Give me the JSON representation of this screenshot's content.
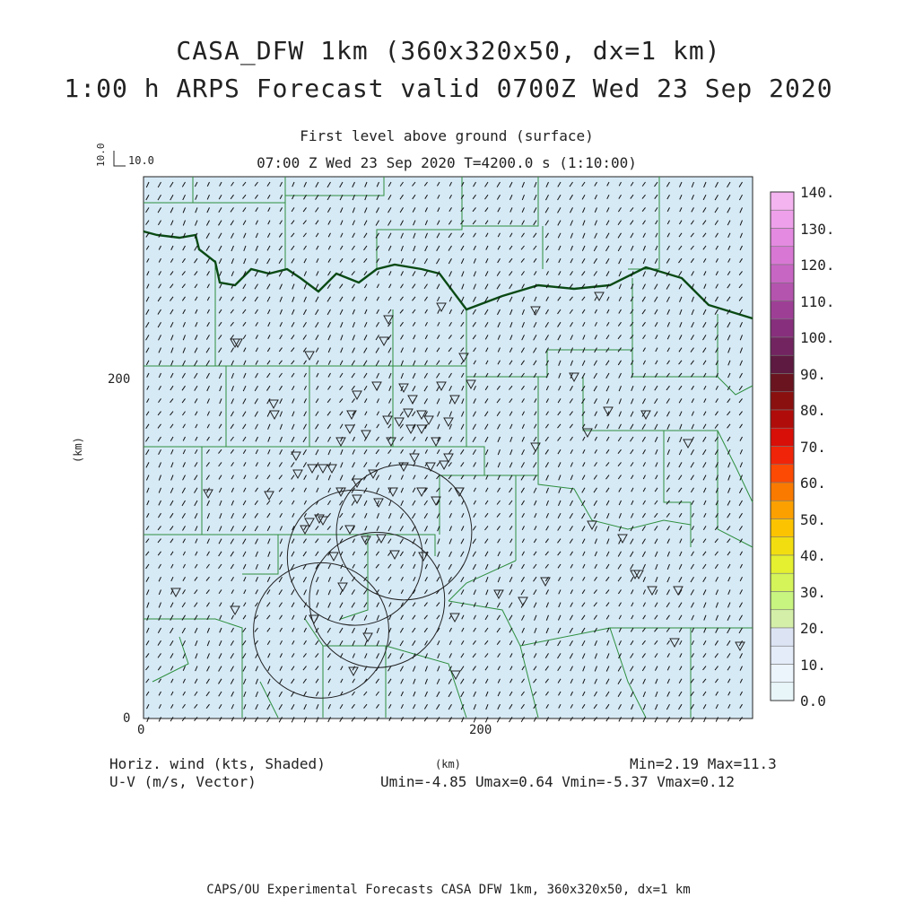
{
  "title": {
    "line1": "CASA_DFW 1km (360x320x50, dx=1 km)",
    "line2": "1:00 h ARPS Forecast valid 0700Z Wed 23 Sep 2020"
  },
  "subtitle": {
    "level": "First level above ground (surface)",
    "time": "07:00 Z Wed 23 Sep 2020    T=4200.0 s (1:10:00)"
  },
  "reference_vector": {
    "vertical_label": "10.0",
    "horizontal_label": "10.0"
  },
  "axes": {
    "x_unit": "(km)",
    "y_unit": "(km)",
    "x_ticks": [
      "0",
      "200"
    ],
    "y_ticks": [
      "0",
      "200"
    ],
    "x_range": [
      0,
      360
    ],
    "y_range": [
      0,
      320
    ]
  },
  "colorbar": {
    "labels": [
      "140.",
      "130.",
      "120.",
      "110.",
      "100.",
      "90.",
      "80.",
      "70.",
      "60.",
      "50.",
      "40.",
      "30.",
      "20.",
      "10.",
      "0.0"
    ],
    "colors": [
      "#f4b4f0",
      "#eea0ea",
      "#e48ae0",
      "#d878d4",
      "#c866c4",
      "#b454ae",
      "#9e3f96",
      "#872f7c",
      "#722460",
      "#5e1a40",
      "#6a1420",
      "#8a1010",
      "#b00c0a",
      "#d80e08",
      "#f02408",
      "#fc4a04",
      "#fa7a00",
      "#fca000",
      "#fcc400",
      "#f2de10",
      "#e4f030",
      "#d4f45a",
      "#c8f480",
      "#d4f0a8",
      "#dce4f4",
      "#e4ecfa",
      "#ecf4fc",
      "#e8f6fa"
    ],
    "fill_level": 0.07
  },
  "bottom": {
    "left1": "Horiz. wind (kts, Shaded)",
    "left2": "U-V (m/s, Vector)",
    "right1": "Min=2.19 Max=11.3",
    "right2": "Umin=-4.85 Umax=0.64 Vmin=-5.37 Vmax=0.12"
  },
  "footer": "CAPS/OU Experimental Forecasts  CASA DFW 1km, 360x320x50, dx=1 km",
  "map": {
    "background": "#d6eaf6",
    "county_color": "#2f8f3f",
    "state_border_color": "#0a4a14",
    "radar_ranges_km": 40,
    "radar_sites_km": [
      [
        105,
        52
      ],
      [
        154,
        110
      ],
      [
        138,
        70
      ],
      [
        125,
        95
      ]
    ],
    "prevailing_wind": {
      "u": -1.8,
      "v": -3.2
    }
  }
}
